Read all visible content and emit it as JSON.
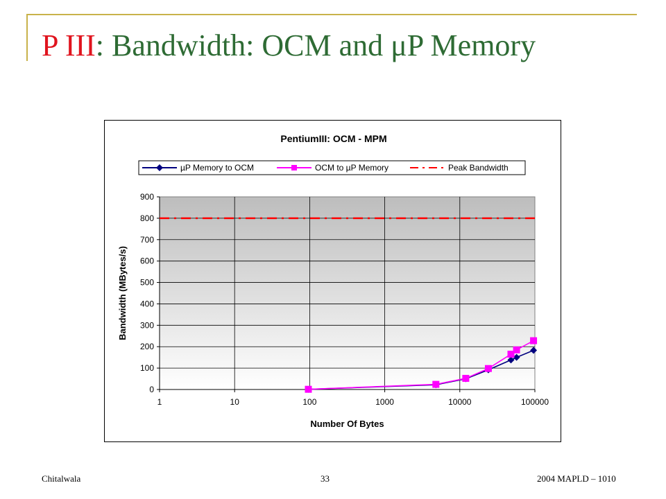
{
  "slide": {
    "title_part1": "P III",
    "title_part2": ": Bandwidth: OCM and μP Memory",
    "footer_left": "Chitalwala",
    "footer_center": "33",
    "footer_right": "2004 MAPLD – 1010"
  },
  "colors": {
    "title_red": "#e0141e",
    "title_green": "#2e6b34",
    "frame": "#c8b24a",
    "series1": "#00007f",
    "series2": "#ff00ff",
    "peak": "#ff0000"
  },
  "chart_data": {
    "type": "line",
    "title": "PentiumIII: OCM - MPM",
    "xlabel": "Number Of Bytes",
    "ylabel": "Bandwidth  (MBytes/s)",
    "x_scale": "log",
    "xlim": [
      1,
      100000
    ],
    "ylim": [
      0,
      900
    ],
    "x_ticks": [
      "1",
      "10",
      "100",
      "1000",
      "10000",
      "100000"
    ],
    "y_ticks": [
      "0",
      "100",
      "200",
      "300",
      "400",
      "500",
      "600",
      "700",
      "800",
      "900"
    ],
    "grid": true,
    "legend_position": "top",
    "series": [
      {
        "name": "µP Memory to OCM",
        "color": "#00007f",
        "marker": "diamond",
        "line": "solid",
        "x": [
          96,
          4800,
          12000,
          24000,
          48000,
          57000,
          96000
        ],
        "y": [
          1,
          22,
          50,
          92,
          138,
          150,
          183
        ]
      },
      {
        "name": "OCM to µP Memory",
        "color": "#ff00ff",
        "marker": "square",
        "line": "solid",
        "x": [
          96,
          4800,
          12000,
          24000,
          48000,
          57000,
          96000
        ],
        "y": [
          1,
          24,
          52,
          98,
          165,
          185,
          228
        ]
      },
      {
        "name": "Peak Bandwidth",
        "color": "#ff0000",
        "marker": "none",
        "line": "dashdot",
        "x": [
          1,
          100000
        ],
        "y": [
          800,
          800
        ]
      }
    ]
  }
}
